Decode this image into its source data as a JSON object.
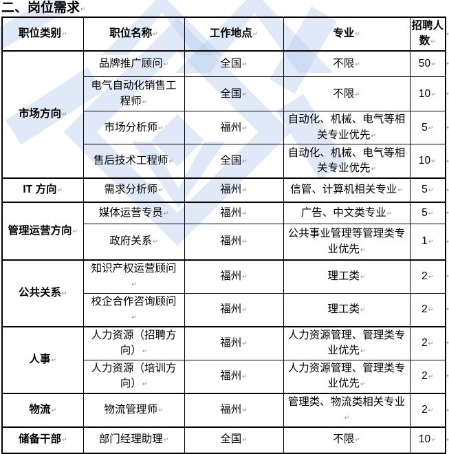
{
  "page": {
    "title": "二、岗位需求",
    "paragraph_mark": "↵",
    "watermark_color": "#dce8f7",
    "border_color": "#000000"
  },
  "table": {
    "headers": [
      "职位类别",
      "职位名称",
      "工作地点",
      "专业",
      "招聘人数"
    ],
    "groups": [
      {
        "category": "市场方向",
        "rows": [
          {
            "name": "品牌推广顾问",
            "location": "全国",
            "major": "不限",
            "count": "50"
          },
          {
            "name": "电气自动化销售工程师",
            "location": "全国",
            "major": "不限",
            "count": "10"
          },
          {
            "name": "市场分析师",
            "location": "福州",
            "major": "自动化、机械、电气等相关专业优先",
            "count": "5"
          },
          {
            "name": "售后技术工程师",
            "location": "全国",
            "major": "自动化、机械、电气等相关专业优先",
            "count": "10"
          }
        ]
      },
      {
        "category": "IT 方向",
        "rows": [
          {
            "name": "需求分析师",
            "location": "福州",
            "major": "信管、计算机相关专业",
            "count": "5"
          }
        ]
      },
      {
        "category": "管理运营方向",
        "rows": [
          {
            "name": "媒体运营专员",
            "location": "福州",
            "major": "广告、中文类专业",
            "count": "5"
          },
          {
            "name": "政府关系",
            "location": "福州",
            "major": "公共事业管理等管理类专业优先",
            "count": "1"
          }
        ]
      },
      {
        "category": "公共关系",
        "rows": [
          {
            "name": "知识产权运营顾问",
            "location": "福州",
            "major": "理工类",
            "count": "2"
          },
          {
            "name": "校企合作咨询顾问",
            "location": "福州",
            "major": "理工类",
            "count": "2"
          }
        ]
      },
      {
        "category": "人事",
        "rows": [
          {
            "name": "人力资源（招聘方向）",
            "location": "福州",
            "major": "人力资源管理、管理类专业优先",
            "count": "2"
          },
          {
            "name": "人力资源（培训方向）",
            "location": "福州",
            "major": "人力资源管理、管理类专业优先",
            "count": "2"
          }
        ]
      },
      {
        "category": "物流",
        "rows": [
          {
            "name": "物流管理师",
            "location": "福州",
            "major": "管理类、物流类相关专业",
            "count": "2"
          }
        ]
      },
      {
        "category": "储备干部",
        "rows": [
          {
            "name": "部门经理助理",
            "location": "全国",
            "major": "不限",
            "count": "10"
          }
        ]
      }
    ]
  }
}
